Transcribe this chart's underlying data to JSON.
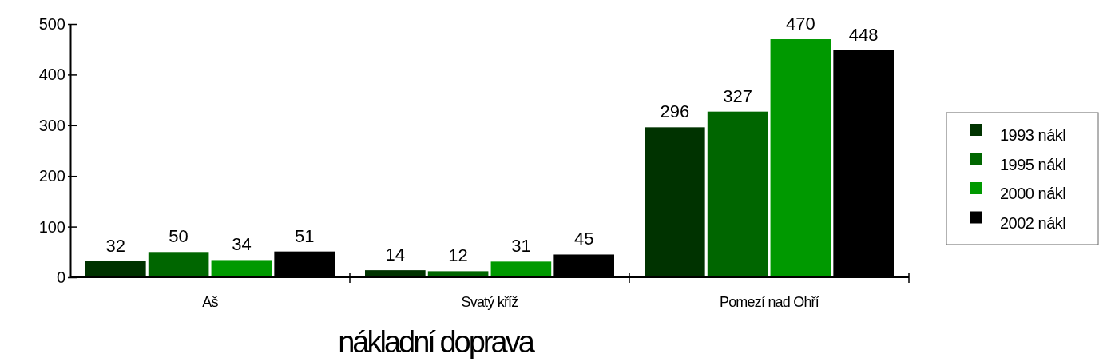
{
  "chart_data": {
    "type": "bar",
    "xlabel": "nákladní doprava",
    "categories": [
      "Aš",
      "Svatý kříž",
      "Pomezí nad Ohří"
    ],
    "series": [
      {
        "name": "1993 nákl",
        "color": "#003300",
        "values": [
          32,
          14,
          296
        ]
      },
      {
        "name": "1995 nákl",
        "color": "#006600",
        "values": [
          50,
          12,
          327
        ]
      },
      {
        "name": "2000 nákl",
        "color": "#009900",
        "values": [
          34,
          31,
          470
        ]
      },
      {
        "name": "2002 nákl",
        "color": "#000000",
        "values": [
          51,
          45,
          448
        ]
      }
    ],
    "ylim": [
      0,
      500
    ],
    "yticks": [
      0,
      100,
      200,
      300,
      400,
      500
    ],
    "grid": false,
    "legend": "right",
    "data_labels": true
  }
}
